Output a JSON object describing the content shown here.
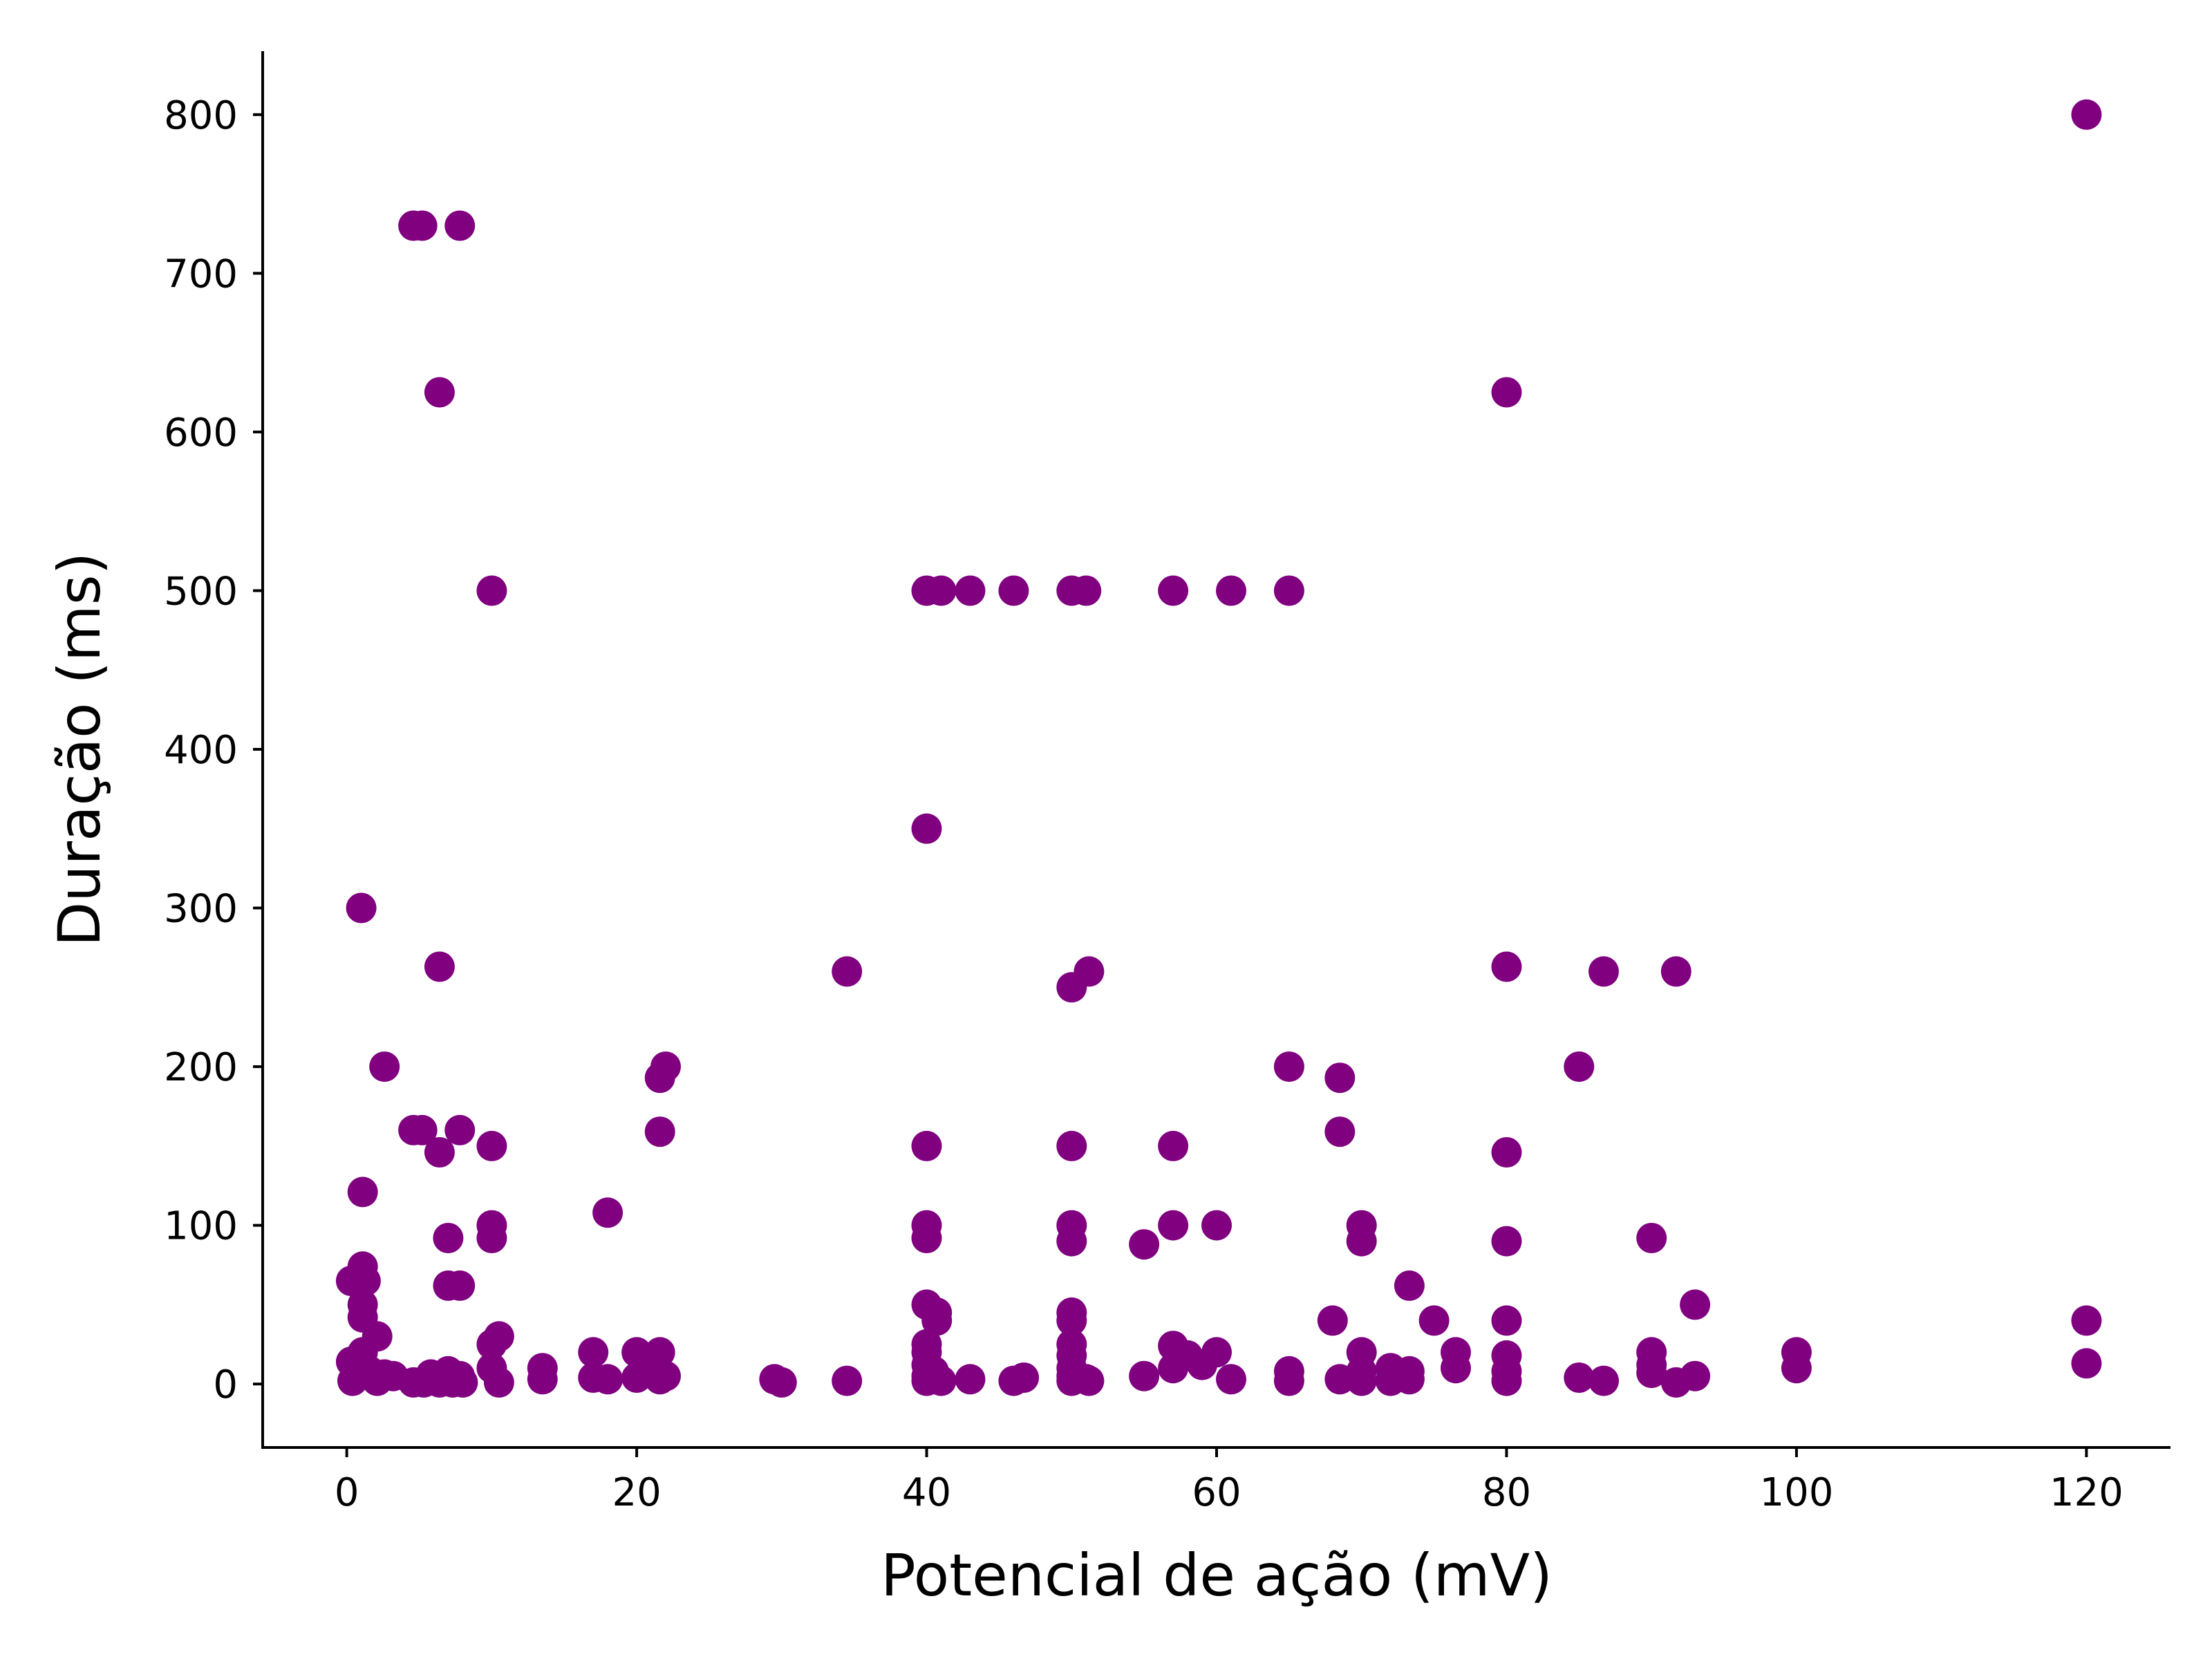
{
  "chart_data": {
    "type": "scatter",
    "title": "",
    "xlabel": "Potencial de ação (mV)",
    "ylabel": "Duração (ms)",
    "xlim": [
      -5.8,
      125.8
    ],
    "ylim": [
      -40,
      840
    ],
    "xticks": [
      0,
      20,
      40,
      60,
      80,
      100,
      120
    ],
    "yticks": [
      0,
      100,
      200,
      300,
      400,
      500,
      600,
      700,
      800
    ],
    "grid": false,
    "legend": "none",
    "marker_color": "#800080",
    "points": [
      [
        4.6,
        730
      ],
      [
        5.2,
        730
      ],
      [
        7.8,
        730
      ],
      [
        6.4,
        625
      ],
      [
        80,
        625
      ],
      [
        120,
        800
      ],
      [
        10,
        500
      ],
      [
        40,
        500
      ],
      [
        41,
        500
      ],
      [
        43,
        500
      ],
      [
        46,
        500
      ],
      [
        50,
        500
      ],
      [
        51,
        500
      ],
      [
        57,
        500
      ],
      [
        61,
        500
      ],
      [
        65,
        500
      ],
      [
        40,
        350
      ],
      [
        1,
        300
      ],
      [
        6.4,
        263
      ],
      [
        34.5,
        260
      ],
      [
        51.2,
        260
      ],
      [
        50,
        250
      ],
      [
        80,
        263
      ],
      [
        86.7,
        260
      ],
      [
        91.7,
        260
      ],
      [
        2.6,
        200
      ],
      [
        22,
        200
      ],
      [
        21.6,
        193
      ],
      [
        65,
        200
      ],
      [
        68.5,
        193
      ],
      [
        85,
        200
      ],
      [
        4.6,
        160
      ],
      [
        5.2,
        160
      ],
      [
        7.8,
        160
      ],
      [
        6.4,
        146
      ],
      [
        10,
        150
      ],
      [
        21.6,
        159
      ],
      [
        40,
        150
      ],
      [
        50,
        150
      ],
      [
        57,
        150
      ],
      [
        68.5,
        159
      ],
      [
        80,
        146
      ],
      [
        1.1,
        121
      ],
      [
        18,
        108
      ],
      [
        7,
        92
      ],
      [
        10,
        100
      ],
      [
        10,
        92
      ],
      [
        40,
        100
      ],
      [
        40,
        92
      ],
      [
        50,
        100
      ],
      [
        50,
        90
      ],
      [
        55,
        88
      ],
      [
        57,
        100
      ],
      [
        60,
        100
      ],
      [
        70,
        100
      ],
      [
        70,
        90
      ],
      [
        80,
        90
      ],
      [
        90,
        92
      ],
      [
        0.3,
        65
      ],
      [
        1.1,
        74
      ],
      [
        1.3,
        65
      ],
      [
        7,
        62
      ],
      [
        7.8,
        62
      ],
      [
        73.3,
        62
      ],
      [
        1.1,
        50
      ],
      [
        1.1,
        42
      ],
      [
        2.1,
        30
      ],
      [
        10,
        25
      ],
      [
        10.5,
        30
      ],
      [
        40,
        50
      ],
      [
        40.7,
        45
      ],
      [
        40.7,
        40
      ],
      [
        50,
        45
      ],
      [
        50,
        40
      ],
      [
        68,
        40
      ],
      [
        75,
        40
      ],
      [
        80,
        40
      ],
      [
        93,
        50
      ],
      [
        120,
        40
      ],
      [
        0.3,
        14
      ],
      [
        0.4,
        2
      ],
      [
        1.1,
        20
      ],
      [
        1.6,
        8
      ],
      [
        2.1,
        2
      ],
      [
        2.6,
        6
      ],
      [
        3.2,
        5
      ],
      [
        4.6,
        1
      ],
      [
        5.3,
        1
      ],
      [
        5.8,
        6
      ],
      [
        6.4,
        1
      ],
      [
        7,
        8
      ],
      [
        7.3,
        1
      ],
      [
        7.8,
        5
      ],
      [
        8,
        1
      ],
      [
        10,
        10
      ],
      [
        10.5,
        1
      ],
      [
        13.5,
        10
      ],
      [
        13.5,
        3
      ],
      [
        17,
        20
      ],
      [
        17,
        4
      ],
      [
        18,
        3
      ],
      [
        20,
        20
      ],
      [
        20,
        4
      ],
      [
        21.1,
        10
      ],
      [
        21.6,
        20
      ],
      [
        21.6,
        3
      ],
      [
        22,
        5
      ],
      [
        29.5,
        3
      ],
      [
        30,
        1
      ],
      [
        34.5,
        2
      ],
      [
        40,
        25
      ],
      [
        40,
        20
      ],
      [
        40,
        12
      ],
      [
        40,
        5
      ],
      [
        40,
        2
      ],
      [
        40.5,
        8
      ],
      [
        41,
        2
      ],
      [
        43,
        3
      ],
      [
        46,
        2
      ],
      [
        46.7,
        4
      ],
      [
        50,
        25
      ],
      [
        50,
        18
      ],
      [
        50,
        10
      ],
      [
        50,
        5
      ],
      [
        50,
        2
      ],
      [
        51,
        3
      ],
      [
        51.2,
        2
      ],
      [
        55,
        5
      ],
      [
        57,
        24
      ],
      [
        57,
        10
      ],
      [
        58,
        18
      ],
      [
        59,
        12
      ],
      [
        60,
        20
      ],
      [
        61,
        3
      ],
      [
        65,
        8
      ],
      [
        65,
        2
      ],
      [
        68.5,
        3
      ],
      [
        70,
        20
      ],
      [
        70,
        8
      ],
      [
        70,
        2
      ],
      [
        72,
        10
      ],
      [
        72,
        2
      ],
      [
        73.3,
        8
      ],
      [
        73.3,
        3
      ],
      [
        76.5,
        20
      ],
      [
        76.5,
        10
      ],
      [
        80,
        18
      ],
      [
        80,
        8
      ],
      [
        80,
        2
      ],
      [
        85,
        4
      ],
      [
        86.7,
        2
      ],
      [
        90,
        20
      ],
      [
        90,
        12
      ],
      [
        90,
        7
      ],
      [
        91.7,
        1
      ],
      [
        93,
        5
      ],
      [
        100,
        20
      ],
      [
        100,
        10
      ],
      [
        120,
        13
      ]
    ]
  }
}
